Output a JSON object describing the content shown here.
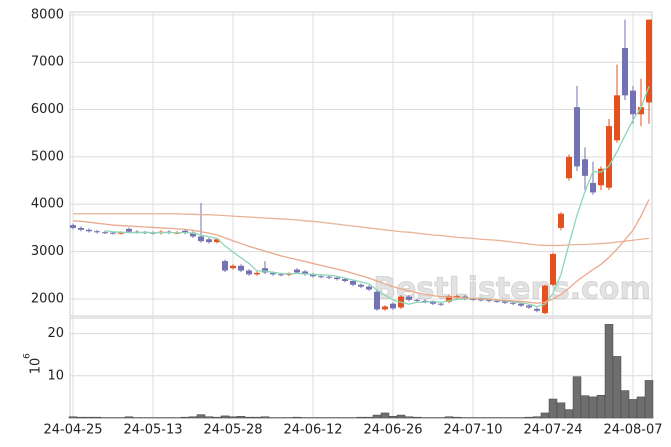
{
  "chart_data": [
    {
      "type": "candlestick",
      "watermark": "BestListens.com",
      "up_color": "#e2511e",
      "down_color": "#7272b4",
      "open": [
        3560,
        3500,
        3460,
        3430,
        3410,
        3400,
        3390,
        3480,
        3420,
        3410,
        3400,
        3390,
        3420,
        3400,
        3440,
        3400,
        3320,
        3260,
        3200,
        2800,
        2650,
        2700,
        2600,
        2520,
        2650,
        2550,
        2520,
        2510,
        2620,
        2580,
        2520,
        2480,
        2470,
        2450,
        2420,
        2380,
        2300,
        2260,
        2150,
        1780,
        1900,
        1820,
        2050,
        1980,
        1960,
        1940,
        1900,
        1940,
        2030,
        2050,
        2000,
        1990,
        1980,
        1960,
        1950,
        1920,
        1900,
        1860,
        1790,
        1700,
        2300,
        3500,
        4550,
        6050,
        4950,
        4450,
        4400,
        4350,
        5350,
        7300,
        6400,
        5900,
        6150
      ],
      "high": [
        3590,
        3530,
        3490,
        3460,
        3440,
        3430,
        3430,
        3510,
        3450,
        3440,
        3430,
        3450,
        3450,
        3430,
        3470,
        3430,
        4030,
        3290,
        3290,
        2830,
        2730,
        2730,
        2630,
        2580,
        2800,
        2580,
        2550,
        2560,
        2650,
        2610,
        2550,
        2510,
        2500,
        2480,
        2450,
        2410,
        2330,
        2290,
        2180,
        1870,
        1930,
        2080,
        2080,
        2010,
        1990,
        1970,
        1930,
        2100,
        2090,
        2080,
        2030,
        2020,
        2010,
        1990,
        1980,
        1950,
        1930,
        1890,
        1820,
        2300,
        2980,
        3830,
        5050,
        6500,
        5200,
        4900,
        4800,
        5800,
        6950,
        7900,
        6500,
        6650,
        7900
      ],
      "low": [
        3470,
        3430,
        3400,
        3380,
        3370,
        3360,
        3360,
        3390,
        3380,
        3370,
        3360,
        3360,
        3370,
        3370,
        3370,
        3290,
        3190,
        3170,
        3170,
        2570,
        2620,
        2570,
        2490,
        2490,
        2530,
        2490,
        2480,
        2480,
        2530,
        2490,
        2450,
        2440,
        2420,
        2390,
        2350,
        2270,
        2230,
        2170,
        1750,
        1750,
        1770,
        1790,
        1950,
        1930,
        1910,
        1870,
        1850,
        1910,
        2000,
        1970,
        1960,
        1950,
        1930,
        1920,
        1890,
        1870,
        1830,
        1790,
        1720,
        1680,
        2280,
        3450,
        4500,
        4700,
        4300,
        4200,
        4300,
        4300,
        5300,
        6200,
        5700,
        5650,
        5700
      ],
      "close": [
        3500,
        3460,
        3430,
        3410,
        3400,
        3390,
        3400,
        3420,
        3410,
        3400,
        3390,
        3420,
        3400,
        3400,
        3400,
        3320,
        3220,
        3200,
        3260,
        2600,
        2700,
        2600,
        2520,
        2550,
        2560,
        2520,
        2510,
        2530,
        2560,
        2520,
        2480,
        2470,
        2450,
        2420,
        2380,
        2300,
        2260,
        2200,
        1780,
        1840,
        1800,
        2050,
        1980,
        1960,
        1940,
        1900,
        1880,
        2060,
        2060,
        2000,
        1990,
        1980,
        1960,
        1950,
        1920,
        1900,
        1860,
        1820,
        1750,
        2280,
        2950,
        3800,
        5000,
        4800,
        4600,
        4250,
        4750,
        5650,
        6300,
        6300,
        5900,
        6050,
        7900
      ],
      "lines": [
        {
          "color": "#8fd6b6",
          "values": [
            null,
            null,
            null,
            null,
            3440,
            3420,
            3410,
            3400,
            3400,
            3410,
            3400,
            3400,
            3400,
            3400,
            3400,
            3390,
            3350,
            3310,
            3280,
            3120,
            2990,
            2870,
            2750,
            2590,
            2590,
            2560,
            2540,
            2530,
            2540,
            2530,
            2520,
            2510,
            2500,
            2480,
            2440,
            2400,
            2360,
            2320,
            2190,
            2080,
            1980,
            1930,
            1890,
            1930,
            1930,
            1950,
            1930,
            1960,
            1990,
            2000,
            2010,
            2020,
            2000,
            1970,
            1960,
            1940,
            1920,
            1890,
            1840,
            1890,
            2120,
            2520,
            3160,
            3770,
            4270,
            4690,
            4680,
            4810,
            5110,
            5450,
            5780,
            6040,
            6490
          ]
        },
        {
          "color": "#eba88a",
          "values": [
            3650,
            3640,
            3620,
            3600,
            3580,
            3560,
            3550,
            3540,
            3530,
            3520,
            3510,
            3500,
            3490,
            3480,
            3470,
            3450,
            3420,
            3390,
            3350,
            3290,
            3230,
            3170,
            3110,
            3060,
            3010,
            2960,
            2910,
            2870,
            2830,
            2790,
            2750,
            2710,
            2670,
            2630,
            2590,
            2540,
            2490,
            2440,
            2380,
            2320,
            2260,
            2210,
            2170,
            2130,
            2100,
            2070,
            2050,
            2040,
            2030,
            2020,
            2010,
            2000,
            1990,
            1980,
            1970,
            1960,
            1950,
            1930,
            1910,
            1930,
            2000,
            2100,
            2230,
            2380,
            2500,
            2620,
            2730,
            2880,
            3050,
            3250,
            3450,
            3750,
            4100
          ]
        },
        {
          "color": "#e8b496",
          "values": [
            3800,
            3800,
            3800,
            3800,
            3800,
            3800,
            3800,
            3800,
            3800,
            3800,
            3800,
            3800,
            3800,
            3800,
            3790,
            3790,
            3780,
            3780,
            3770,
            3760,
            3750,
            3740,
            3730,
            3720,
            3710,
            3700,
            3690,
            3680,
            3670,
            3650,
            3640,
            3620,
            3600,
            3580,
            3560,
            3540,
            3520,
            3500,
            3480,
            3460,
            3440,
            3420,
            3410,
            3390,
            3370,
            3350,
            3340,
            3320,
            3300,
            3290,
            3280,
            3260,
            3250,
            3240,
            3220,
            3200,
            3180,
            3160,
            3140,
            3130,
            3130,
            3130,
            3140,
            3150,
            3150,
            3160,
            3170,
            3180,
            3200,
            3220,
            3240,
            3260,
            3280
          ]
        }
      ],
      "ylim": [
        1640,
        8060
      ],
      "yticks": [
        2000,
        3000,
        4000,
        5000,
        6000,
        7000,
        8000
      ],
      "grid": true
    },
    {
      "type": "bar",
      "color": "#6e6e6e",
      "ylabel_base": "10",
      "ylabel_exponent": "6",
      "categories": [
        "24-04-25",
        null,
        null,
        null,
        null,
        null,
        null,
        null,
        null,
        null,
        "24-05-13",
        null,
        null,
        null,
        null,
        null,
        null,
        null,
        null,
        null,
        "24-05-28",
        null,
        null,
        null,
        null,
        null,
        null,
        null,
        null,
        null,
        "24-06-12",
        null,
        null,
        null,
        null,
        null,
        null,
        null,
        null,
        null,
        "24-06-26",
        null,
        null,
        null,
        null,
        null,
        null,
        null,
        null,
        null,
        "24-07-10",
        null,
        null,
        null,
        null,
        null,
        null,
        null,
        null,
        null,
        "24-07-24",
        null,
        null,
        null,
        null,
        null,
        null,
        null,
        null,
        null,
        "24-08-07",
        null,
        null
      ],
      "values": [
        0.3,
        0.2,
        0.2,
        0.2,
        0.1,
        0.1,
        0.1,
        0.3,
        0.1,
        0.1,
        0.1,
        0.1,
        0.1,
        0.1,
        0.2,
        0.3,
        0.8,
        0.3,
        0.2,
        0.5,
        0.3,
        0.4,
        0.2,
        0.2,
        0.3,
        0.1,
        0.1,
        0.1,
        0.2,
        0.1,
        0.1,
        0.1,
        0.1,
        0.1,
        0.1,
        0.1,
        0.2,
        0.2,
        0.7,
        1.2,
        0.4,
        0.7,
        0.3,
        0.2,
        0.1,
        0.1,
        0.1,
        0.3,
        0.2,
        0.1,
        0.1,
        0.1,
        0.1,
        0.1,
        0.1,
        0.1,
        0.1,
        0.2,
        0.3,
        1.2,
        4.5,
        3.6,
        2.0,
        9.8,
        5.3,
        5.0,
        5.4,
        22.2,
        14.6,
        6.5,
        4.4,
        5.0,
        8.9
      ],
      "ylim": [
        0,
        23.7
      ],
      "yticks": [
        10,
        20
      ],
      "grid": true
    }
  ]
}
